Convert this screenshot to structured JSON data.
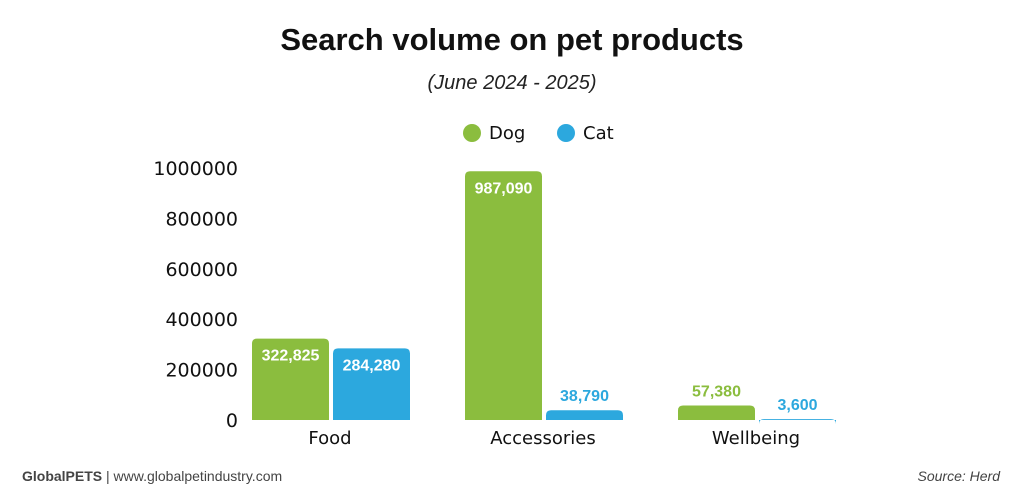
{
  "chart_data": {
    "type": "bar",
    "title": "Search volume on pet products",
    "subtitle": "(June 2024 - 2025)",
    "categories": [
      "Food",
      "Accessories",
      "Wellbeing"
    ],
    "series": [
      {
        "name": "Dog",
        "color": "#8bbd3e",
        "values": [
          322825,
          987090,
          57380
        ],
        "labels": [
          "322,825",
          "987,090",
          "57,380"
        ]
      },
      {
        "name": "Cat",
        "color": "#2ca8de",
        "values": [
          284280,
          38790,
          3600
        ],
        "labels": [
          "284,280",
          "38,790",
          "3,600"
        ]
      }
    ],
    "ylim": [
      0,
      1000000
    ],
    "yticks": [
      "0",
      "200000",
      "400000",
      "600000",
      "800000",
      "1000000"
    ],
    "legend": "top",
    "grid": false
  },
  "footer": {
    "brand": "GlobalPETS",
    "site": " | www.globalpetindustry.com",
    "source": "Source: Herd"
  }
}
